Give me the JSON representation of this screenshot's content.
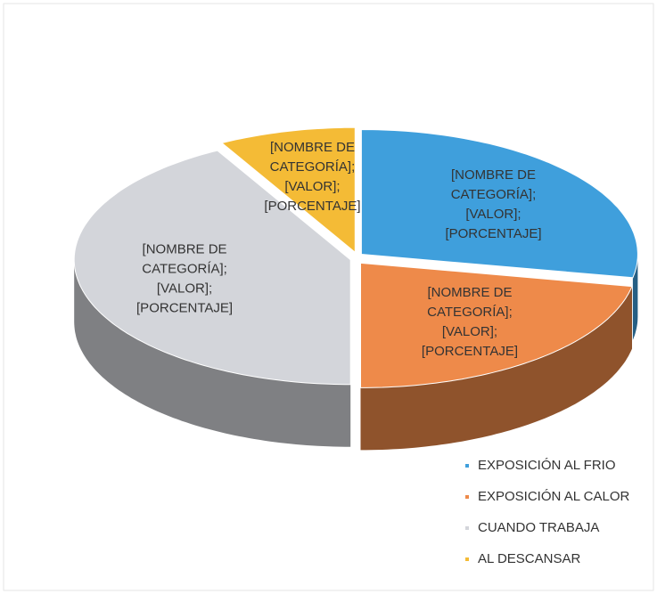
{
  "chart_data": {
    "type": "pie",
    "categories": [
      "EXPOSICIÓN AL FRIO",
      "EXPOSICIÓN AL CALOR",
      "CUANDO TRABAJA",
      "AL DESCANSAR"
    ],
    "values": [
      28,
      22,
      42,
      8
    ],
    "colors": [
      "#3f9fdc",
      "#ee8a4a",
      "#d3d5da",
      "#f4bb36"
    ],
    "data_labels": [
      [
        "[NOMBRE DE",
        "CATEGORÍA];",
        "[VALOR];",
        "[PORCENTAJE]"
      ],
      [
        "[NOMBRE DE",
        "CATEGORÍA];",
        "[VALOR];",
        "[PORCENTAJE]"
      ],
      [
        "[NOMBRE DE",
        "CATEGORÍA];",
        "[VALOR];",
        "[PORCENTAJE]"
      ],
      [
        "[NOMBRE DE",
        "CATEGORÍA];",
        "[VALOR];",
        "[PORCENTAJE]"
      ]
    ],
    "legend": "bottom-right"
  }
}
